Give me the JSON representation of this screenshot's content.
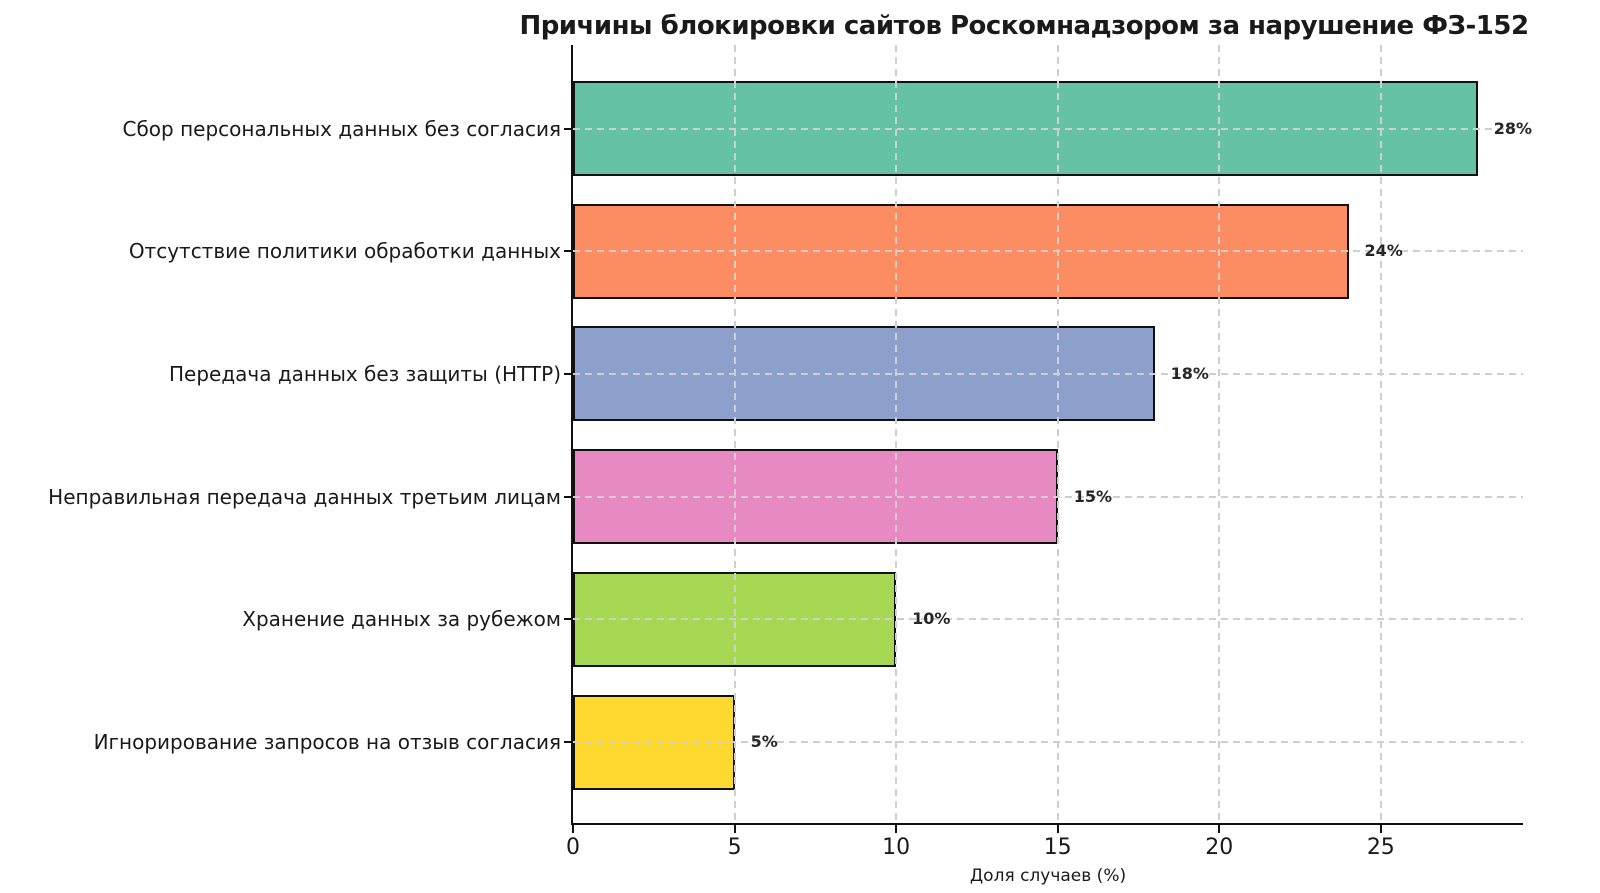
{
  "chart_data": {
    "type": "bar",
    "orientation": "horizontal",
    "title": "Причины блокировки сайтов Роскомнадзором за нарушение ФЗ-152",
    "xlabel": "Доля случаев (%)",
    "ylabel": "",
    "categories": [
      "Сбор персональных данных без согласия",
      "Отсутствие политики обработки данных",
      "Передача данных без защиты (HTTP)",
      "Неправильная передача данных третьим лицам",
      "Хранение данных за рубежом",
      "Игнорирование запросов на отзыв согласия"
    ],
    "values": [
      28,
      24,
      18,
      15,
      10,
      5
    ],
    "value_labels": [
      "28%",
      "24%",
      "18%",
      "15%",
      "10%",
      "5%"
    ],
    "bar_colors": [
      "#66c2a5",
      "#fc8d62",
      "#8da0cb",
      "#e78ac3",
      "#a6d854",
      "#ffd92f"
    ],
    "bar_edge_color": "#111111",
    "xticks": [
      0,
      5,
      10,
      15,
      20,
      25
    ],
    "xtick_labels": [
      "0",
      "5",
      "10",
      "15",
      "20",
      "25"
    ],
    "xlim": [
      0,
      29.4
    ],
    "grid": true,
    "grid_style": "dashed",
    "grid_color": "#cfcfcf",
    "legend_position": "none",
    "background_color": "#ffffff"
  }
}
